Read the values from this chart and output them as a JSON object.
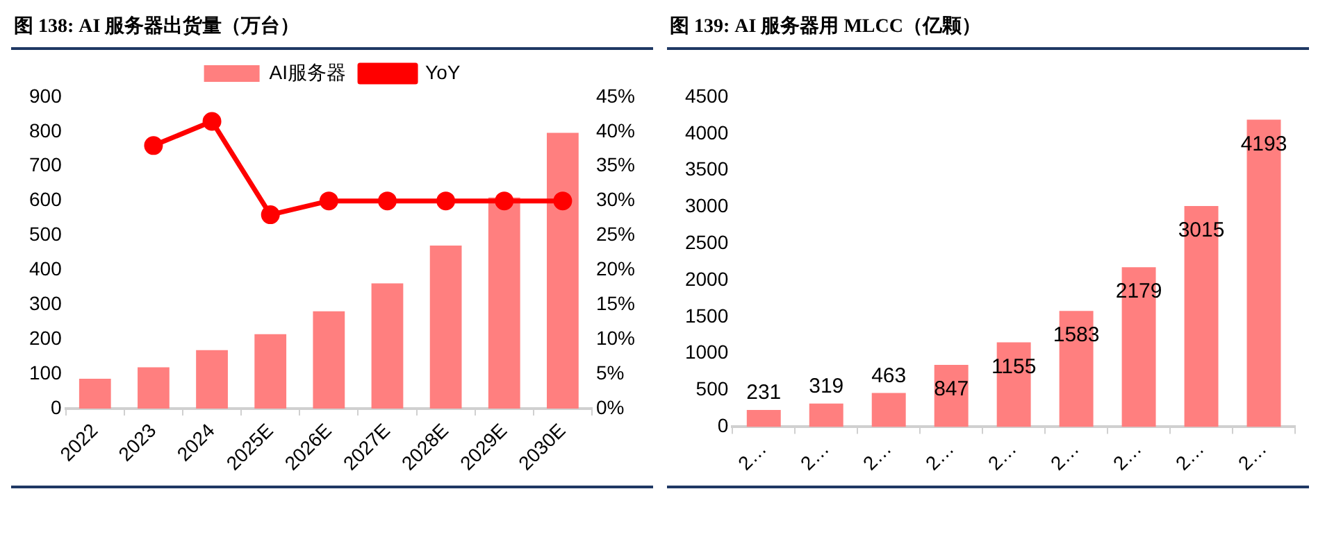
{
  "chart_data": [
    {
      "type": "bar",
      "title": "图 138: AI 服务器出货量（万台）",
      "categories": [
        "2022",
        "2023",
        "2024",
        "2025E",
        "2026E",
        "2027E",
        "2028E",
        "2029E",
        "2030E"
      ],
      "series": [
        {
          "name": "AI服务器",
          "color": "#ff7f7f",
          "values": [
            86,
            119,
            169,
            215,
            281,
            362,
            471,
            610,
            797
          ]
        },
        {
          "name": "YoY",
          "type": "line",
          "axis": "y2",
          "color": "#ff0000",
          "marker": "circle",
          "values": [
            null,
            38,
            41.5,
            28,
            30,
            30,
            30,
            30,
            30
          ]
        }
      ],
      "ylim": [
        0,
        900
      ],
      "yticks": [
        0,
        100,
        200,
        300,
        400,
        500,
        600,
        700,
        800,
        900
      ],
      "y2lim": [
        0,
        45
      ],
      "y2ticks": [
        {
          "value": 0,
          "label": "0%"
        },
        {
          "value": 5,
          "label": "5%"
        },
        {
          "value": 10,
          "label": "10%"
        },
        {
          "value": 15,
          "label": "15%"
        },
        {
          "value": 20,
          "label": "20%"
        },
        {
          "value": 25,
          "label": "25%"
        },
        {
          "value": 30,
          "label": "30%"
        },
        {
          "value": 35,
          "label": "35%"
        },
        {
          "value": 40,
          "label": "40%"
        },
        {
          "value": 45,
          "label": "45%"
        }
      ],
      "legend": "top",
      "grid": false
    },
    {
      "type": "bar",
      "title": "图 139: AI 服务器用 MLCC（亿颗）",
      "categories": [
        "2…",
        "2…",
        "2…",
        "2…",
        "2…",
        "2…",
        "2…",
        "2…",
        "2…"
      ],
      "values": [
        231,
        319,
        463,
        847,
        1155,
        1583,
        2179,
        3015,
        4193
      ],
      "color": "#ff7f7f",
      "ylim": [
        0,
        4500
      ],
      "yticks": [
        0,
        500,
        1000,
        1500,
        2000,
        2500,
        3000,
        3500,
        4000,
        4500
      ],
      "data_labels": true,
      "grid": false
    }
  ]
}
